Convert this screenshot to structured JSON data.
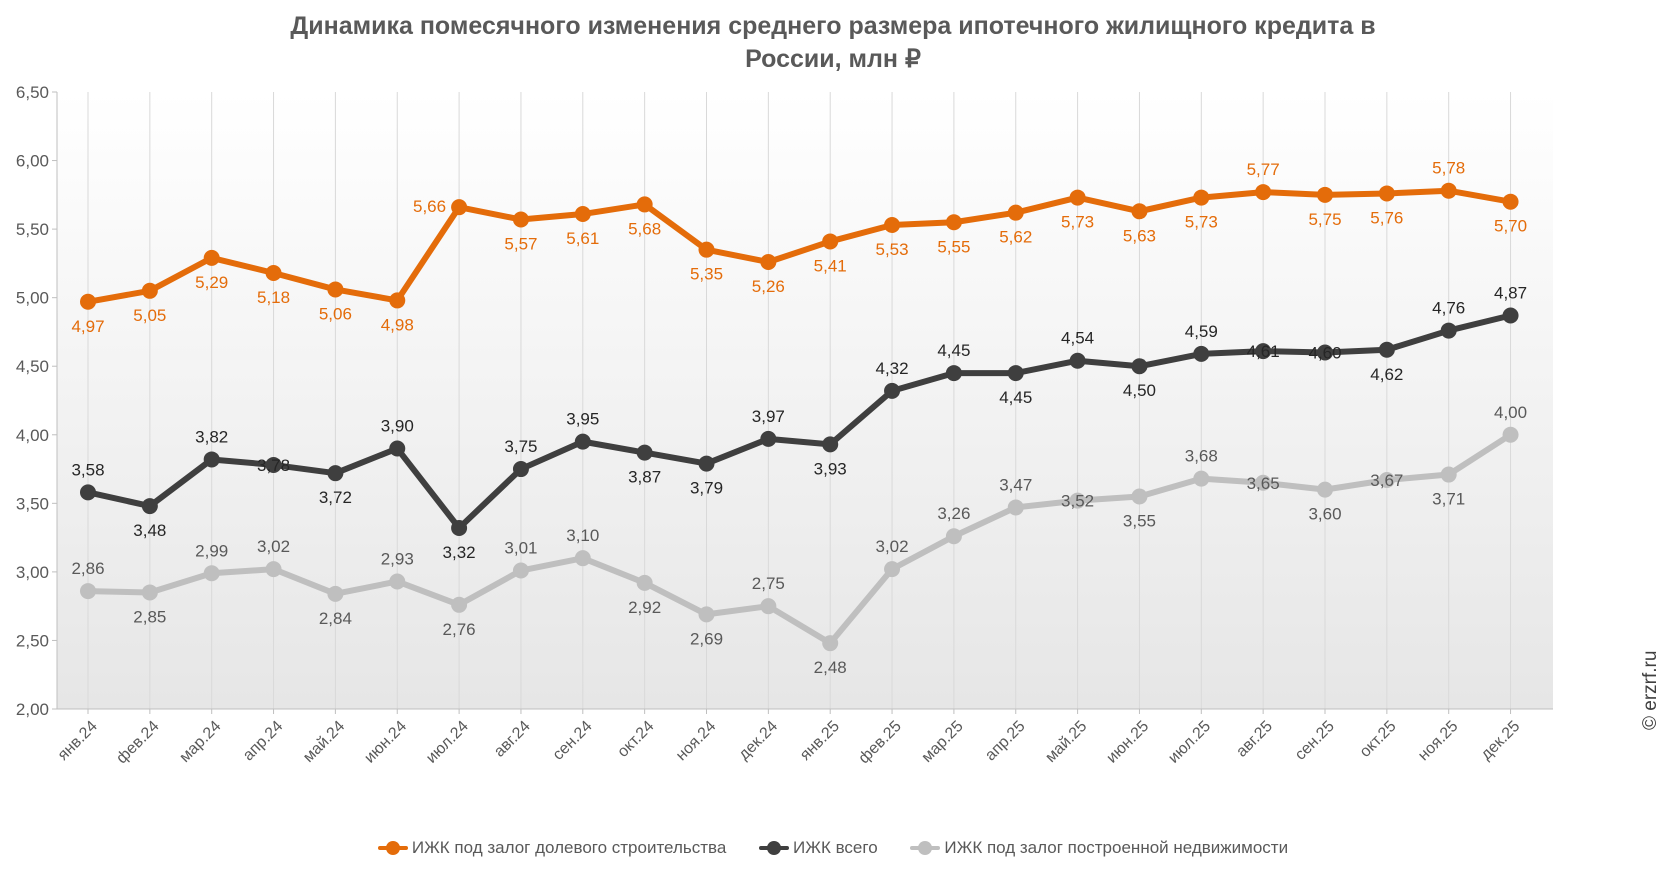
{
  "title_line1": "Динамика помесячного изменения среднего размера ипотечного жилищного кредита в",
  "title_line2": "России, млн ₽",
  "watermark": "© erzrf.ru",
  "chart_data": {
    "type": "line",
    "title": "Динамика помесячного изменения среднего размера ипотечного жилищного кредита в России, млн ₽",
    "categories": [
      "янв.24",
      "фев.24",
      "мар.24",
      "апр.24",
      "май.24",
      "июн.24",
      "июл.24",
      "авг.24",
      "сен.24",
      "окт.24",
      "ноя.24",
      "дек.24",
      "янв.25",
      "фев.25",
      "мар.25",
      "апр.25",
      "май.25",
      "июн.25",
      "июл.25",
      "авг.25",
      "сен.25",
      "окт.25",
      "ноя.25",
      "дек.25"
    ],
    "ylim": [
      2.0,
      6.5
    ],
    "yticks": [
      "2,00",
      "2,50",
      "3,00",
      "3,50",
      "4,00",
      "4,50",
      "5,00",
      "5,50",
      "6,00",
      "6,50"
    ],
    "grid": "vertical",
    "legend_position": "bottom",
    "series": [
      {
        "name": "ИЖК под залог долевого строительства",
        "color": "#E46C0A",
        "values": [
          4.97,
          5.05,
          5.29,
          5.18,
          5.06,
          4.98,
          5.66,
          5.57,
          5.61,
          5.68,
          5.35,
          5.26,
          5.41,
          5.53,
          5.55,
          5.62,
          5.73,
          5.63,
          5.73,
          5.77,
          5.75,
          5.76,
          5.78,
          5.7
        ],
        "labels": [
          "4,97",
          "5,05",
          "5,29",
          "5,18",
          "5,06",
          "4,98",
          "5,66",
          "5,57",
          "5,61",
          "5,68",
          "5,35",
          "5,26",
          "5,41",
          "5,53",
          "5,55",
          "5,62",
          "5,73",
          "5,63",
          "5,73",
          "5,77",
          "5,75",
          "5,76",
          "5,78",
          "5,70"
        ],
        "label_pos": [
          "b",
          "b",
          "b",
          "b",
          "b",
          "b",
          "l",
          "b",
          "b",
          "b",
          "b",
          "b",
          "b",
          "b",
          "b",
          "b",
          "b",
          "b",
          "b",
          "t",
          "b",
          "b",
          "t",
          "b"
        ]
      },
      {
        "name": "ИЖК всего",
        "color": "#3F3F3F",
        "values": [
          3.58,
          3.48,
          3.82,
          3.78,
          3.72,
          3.9,
          3.32,
          3.75,
          3.95,
          3.87,
          3.79,
          3.97,
          3.93,
          4.32,
          4.45,
          4.45,
          4.54,
          4.5,
          4.59,
          4.61,
          4.6,
          4.62,
          4.76,
          4.87
        ],
        "labels": [
          "3,58",
          "3,48",
          "3,82",
          "3,78",
          "3,72",
          "3,90",
          "3,32",
          "3,75",
          "3,95",
          "3,87",
          "3,79",
          "3,97",
          "3,93",
          "4,32",
          "4,45",
          "4,45",
          "4,54",
          "4,50",
          "4,59",
          "4,61",
          "4,60",
          "4,62",
          "4,76",
          "4,87"
        ],
        "label_pos": [
          "t",
          "b",
          "t",
          "c",
          "b",
          "t",
          "b",
          "t",
          "t",
          "b",
          "b",
          "t",
          "b",
          "t",
          "t",
          "b",
          "t",
          "b",
          "t",
          "c",
          "c",
          "b",
          "t",
          "t"
        ]
      },
      {
        "name": "ИЖК под залог построенной недвижимости",
        "color": "#BFBFBF",
        "values": [
          2.86,
          2.85,
          2.99,
          3.02,
          2.84,
          2.93,
          2.76,
          3.01,
          3.1,
          2.92,
          2.69,
          2.75,
          2.48,
          3.02,
          3.26,
          3.47,
          3.52,
          3.55,
          3.68,
          3.65,
          3.6,
          3.67,
          3.71,
          4.0
        ],
        "labels": [
          "2,86",
          "2,85",
          "2,99",
          "3,02",
          "2,84",
          "2,93",
          "2,76",
          "3,01",
          "3,10",
          "2,92",
          "2,69",
          "2,75",
          "2,48",
          "3,02",
          "3,26",
          "3,47",
          "3,52",
          "3,55",
          "3,68",
          "3,65",
          "3,60",
          "3,67",
          "3,71",
          "4,00"
        ],
        "label_pos": [
          "t",
          "b",
          "t",
          "t",
          "b",
          "t",
          "b",
          "t",
          "t",
          "b",
          "b",
          "t",
          "b",
          "t",
          "t",
          "t",
          "c",
          "b",
          "t",
          "c",
          "b",
          "c",
          "b",
          "t"
        ]
      }
    ]
  }
}
